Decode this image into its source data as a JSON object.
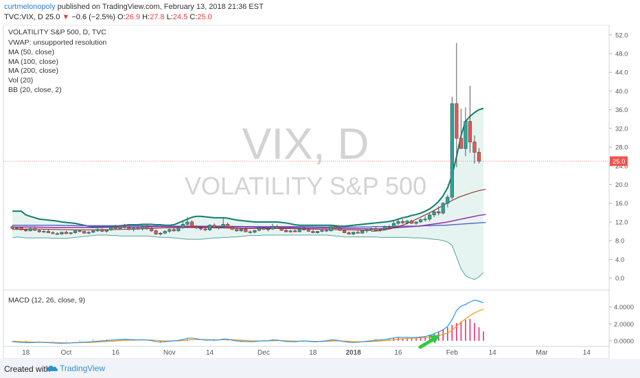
{
  "header": {
    "author": "curtmelonopoly",
    "published_text": "published on TradingView.com, February 13, 2018 21:36 EST",
    "symbol": "TVC:VIX, D",
    "last": "25.0",
    "change": "−0.6 (−2.5%)",
    "o_label": "O:",
    "o_value": "26.9",
    "h_label": "H:",
    "h_value": "27.8",
    "l_label": "L:",
    "l_value": "24.5",
    "c_label": "C:",
    "c_value": "25.0"
  },
  "footer": {
    "created_with": "Created with",
    "brand": "TradingView"
  },
  "colors": {
    "up": "#26a69a",
    "down": "#ef5350",
    "bb": "#0f7c6e",
    "bb_fill": "#e6f4f1",
    "ma50": "#8b1a1a",
    "ma100": "#9c27b0",
    "ma200": "#5c6bc0",
    "macd": "#2196f3",
    "signal": "#ff9800",
    "hist": "#e91e63",
    "current": "#ef5350"
  },
  "chart_data": [
    {
      "type": "candlestick",
      "title": "VOLATILITY S&P 500, D, TVC",
      "watermark_symbol": "VIX, D",
      "watermark_name": "VOLATILITY S&P 500",
      "legend": [
        "VWAP: unsupported resolution",
        "MA (50, close)",
        "MA (100, close)",
        "MA (200, close)",
        "Vol (20)",
        "BB (20, close, 2)"
      ],
      "y_ticks": [
        0.0,
        4.0,
        8.0,
        12.0,
        16.0,
        20.0,
        24.0,
        28.0,
        32.0,
        36.0,
        40.0,
        44.0,
        48.0,
        52.0
      ],
      "ylim": [
        -0.5,
        53.0
      ],
      "current_price": 25.0,
      "x_ticks": [
        {
          "label": "18",
          "x": 3
        },
        {
          "label": "Oct",
          "x": 12
        },
        {
          "label": "16",
          "x": 23
        },
        {
          "label": "Nov",
          "x": 35
        },
        {
          "label": "14",
          "x": 44
        },
        {
          "label": "Dec",
          "x": 56
        },
        {
          "label": "18",
          "x": 67
        },
        {
          "label": "2018",
          "x": 76
        },
        {
          "label": "16",
          "x": 86
        },
        {
          "label": "Feb",
          "x": 98
        },
        {
          "label": "14",
          "x": 107
        },
        {
          "label": "Mar",
          "x": 118
        },
        {
          "label": "14",
          "x": 128
        }
      ],
      "x_range": [
        -2,
        133
      ],
      "ohlc": [
        [
          11.0,
          11.3,
          10.4,
          10.6
        ],
        [
          10.6,
          11.0,
          10.3,
          10.8
        ],
        [
          10.8,
          11.0,
          10.2,
          10.3
        ],
        [
          10.3,
          10.6,
          9.9,
          10.1
        ],
        [
          10.1,
          10.8,
          10.0,
          10.6
        ],
        [
          10.6,
          10.9,
          10.1,
          10.2
        ],
        [
          10.2,
          10.4,
          9.7,
          9.9
        ],
        [
          9.9,
          10.3,
          9.6,
          10.0
        ],
        [
          10.0,
          10.4,
          9.6,
          9.7
        ],
        [
          9.7,
          10.0,
          9.4,
          9.5
        ],
        [
          9.5,
          9.8,
          9.2,
          9.4
        ],
        [
          9.4,
          9.9,
          9.3,
          9.8
        ],
        [
          9.8,
          10.1,
          9.4,
          9.5
        ],
        [
          9.5,
          9.8,
          9.3,
          9.7
        ],
        [
          9.7,
          10.2,
          9.5,
          10.1
        ],
        [
          10.1,
          10.4,
          9.8,
          10.0
        ],
        [
          10.0,
          10.1,
          9.5,
          9.6
        ],
        [
          9.6,
          10.0,
          9.4,
          9.8
        ],
        [
          9.8,
          10.2,
          9.6,
          10.1
        ],
        [
          10.1,
          10.6,
          9.9,
          10.4
        ],
        [
          10.4,
          10.6,
          9.8,
          10.0
        ],
        [
          10.0,
          10.4,
          9.7,
          10.3
        ],
        [
          10.3,
          11.2,
          10.1,
          10.9
        ],
        [
          10.9,
          11.4,
          10.4,
          10.6
        ],
        [
          10.6,
          11.2,
          10.3,
          11.1
        ],
        [
          11.1,
          11.6,
          10.6,
          10.8
        ],
        [
          10.8,
          11.1,
          10.2,
          10.4
        ],
        [
          10.4,
          10.8,
          10.0,
          10.7
        ],
        [
          10.7,
          11.1,
          10.3,
          10.5
        ],
        [
          10.5,
          11.2,
          10.2,
          11.0
        ],
        [
          11.0,
          11.4,
          10.3,
          10.6
        ],
        [
          10.6,
          10.9,
          9.9,
          10.1
        ],
        [
          10.1,
          10.4,
          9.3,
          9.4
        ],
        [
          9.4,
          9.8,
          9.1,
          9.6
        ],
        [
          9.6,
          10.2,
          9.4,
          10.0
        ],
        [
          10.0,
          10.6,
          9.7,
          10.4
        ],
        [
          10.4,
          10.9,
          9.9,
          10.1
        ],
        [
          10.1,
          11.0,
          9.9,
          10.8
        ],
        [
          10.8,
          12.2,
          10.5,
          11.5
        ],
        [
          11.5,
          13.1,
          11.0,
          12.0
        ],
        [
          12.0,
          12.4,
          10.8,
          11.0
        ],
        [
          11.0,
          11.3,
          10.5,
          10.7
        ],
        [
          10.7,
          11.0,
          10.2,
          10.5
        ],
        [
          10.5,
          10.9,
          10.0,
          10.3
        ],
        [
          10.3,
          11.5,
          10.1,
          11.3
        ],
        [
          11.3,
          11.7,
          10.6,
          10.8
        ],
        [
          10.8,
          11.2,
          10.4,
          11.0
        ],
        [
          11.0,
          12.8,
          10.8,
          11.5
        ],
        [
          11.5,
          11.9,
          10.8,
          10.9
        ],
        [
          10.9,
          11.2,
          10.3,
          10.4
        ],
        [
          10.4,
          10.8,
          9.9,
          10.1
        ],
        [
          10.1,
          10.6,
          9.9,
          10.5
        ],
        [
          10.5,
          10.8,
          9.8,
          9.9
        ],
        [
          9.9,
          10.2,
          9.5,
          9.8
        ],
        [
          9.8,
          10.3,
          9.6,
          10.2
        ],
        [
          10.2,
          10.9,
          10.0,
          10.7
        ],
        [
          10.7,
          11.0,
          10.3,
          10.4
        ],
        [
          10.4,
          10.7,
          10.0,
          10.5
        ],
        [
          10.5,
          11.6,
          10.3,
          11.0
        ],
        [
          11.0,
          11.4,
          10.5,
          10.6
        ],
        [
          10.6,
          10.9,
          10.1,
          10.2
        ],
        [
          10.2,
          10.5,
          9.8,
          9.9
        ],
        [
          9.9,
          10.3,
          9.7,
          10.1
        ],
        [
          10.1,
          10.4,
          9.8,
          9.9
        ],
        [
          9.9,
          10.6,
          9.8,
          10.5
        ],
        [
          10.5,
          10.9,
          10.2,
          10.3
        ],
        [
          10.3,
          10.6,
          9.9,
          10.0
        ],
        [
          10.0,
          10.3,
          9.6,
          9.7
        ],
        [
          9.7,
          10.1,
          9.5,
          10.0
        ],
        [
          10.0,
          10.4,
          9.8,
          10.2
        ],
        [
          10.2,
          10.5,
          9.9,
          10.1
        ],
        [
          10.1,
          11.1,
          10.0,
          11.0
        ],
        [
          11.0,
          11.3,
          10.5,
          10.6
        ],
        [
          10.6,
          10.8,
          10.1,
          10.2
        ],
        [
          10.2,
          10.4,
          9.6,
          9.7
        ],
        [
          9.7,
          10.0,
          9.3,
          9.4
        ],
        [
          9.4,
          9.9,
          9.2,
          9.8
        ],
        [
          9.8,
          10.2,
          9.5,
          9.6
        ],
        [
          9.6,
          10.3,
          9.5,
          10.1
        ],
        [
          10.1,
          10.5,
          9.7,
          10.3
        ],
        [
          10.3,
          10.9,
          10.1,
          10.6
        ],
        [
          10.6,
          10.9,
          10.0,
          10.2
        ],
        [
          10.2,
          10.6,
          9.9,
          10.4
        ],
        [
          10.4,
          11.2,
          10.2,
          11.0
        ],
        [
          11.0,
          11.3,
          10.6,
          10.9
        ],
        [
          10.9,
          12.1,
          10.7,
          11.7
        ],
        [
          11.7,
          12.6,
          11.3,
          12.1
        ],
        [
          12.1,
          12.6,
          11.6,
          11.8
        ],
        [
          11.8,
          12.4,
          11.5,
          12.2
        ],
        [
          12.2,
          12.5,
          11.6,
          11.7
        ],
        [
          11.7,
          12.1,
          11.4,
          12.0
        ],
        [
          12.0,
          12.7,
          11.8,
          12.5
        ],
        [
          12.5,
          13.2,
          12.1,
          12.6
        ],
        [
          12.6,
          13.9,
          12.2,
          13.5
        ],
        [
          13.5,
          14.6,
          13.0,
          14.2
        ],
        [
          14.2,
          15.3,
          13.4,
          13.9
        ],
        [
          13.9,
          16.2,
          13.6,
          16.0
        ],
        [
          16.0,
          17.8,
          15.1,
          17.3
        ],
        [
          17.3,
          38.8,
          16.8,
          37.3
        ],
        [
          37.3,
          50.3,
          23.7,
          29.9
        ],
        [
          29.9,
          36.2,
          27.7,
          27.7
        ],
        [
          27.7,
          36.5,
          26.1,
          33.5
        ],
        [
          33.5,
          41.1,
          26.8,
          29.1
        ],
        [
          29.1,
          30.5,
          24.5,
          26.9
        ],
        [
          26.9,
          27.8,
          24.5,
          25.0
        ]
      ],
      "bb_upper": [
        14.3,
        14.3,
        14.3,
        13.5,
        13.2,
        12.9,
        12.6,
        12.5,
        12.4,
        12.3,
        12.2,
        12.0,
        11.9,
        11.8,
        11.7,
        11.5,
        11.3,
        11.1,
        11.0,
        11.0,
        11.0,
        11.0,
        11.1,
        11.1,
        11.2,
        11.3,
        11.4,
        11.4,
        11.4,
        11.5,
        11.5,
        11.5,
        11.4,
        11.4,
        11.3,
        11.3,
        11.4,
        11.8,
        12.2,
        12.6,
        13.0,
        13.2,
        13.2,
        13.1,
        13.0,
        12.9,
        12.9,
        12.9,
        12.8,
        12.6,
        12.4,
        12.3,
        12.2,
        12.1,
        12.0,
        12.0,
        12.0,
        12.0,
        12.0,
        12.0,
        11.9,
        11.8,
        11.6,
        11.4,
        11.3,
        11.3,
        11.3,
        11.3,
        11.3,
        11.3,
        11.3,
        11.3,
        11.2,
        11.1,
        11.1,
        11.2,
        11.3,
        11.4,
        11.5,
        11.6,
        11.7,
        11.8,
        11.9,
        12.0,
        12.1,
        12.3,
        12.6,
        12.9,
        13.1,
        13.4,
        13.6,
        13.9,
        14.3,
        14.8,
        15.5,
        16.4,
        17.6,
        19.3,
        22.0,
        26.0,
        30.5,
        33.5,
        34.6,
        35.4,
        36.0,
        36.3
      ],
      "bb_lower": [
        8.6,
        8.8,
        8.7,
        8.6,
        8.6,
        8.6,
        8.6,
        8.6,
        8.6,
        8.5,
        8.5,
        8.5,
        8.5,
        8.6,
        8.7,
        8.8,
        8.9,
        9.0,
        9.1,
        9.2,
        9.2,
        9.2,
        9.1,
        9.1,
        9.0,
        9.0,
        9.0,
        9.0,
        9.0,
        9.0,
        9.0,
        8.9,
        8.8,
        8.7,
        8.7,
        8.7,
        8.6,
        8.5,
        8.4,
        8.3,
        8.3,
        8.3,
        8.3,
        8.4,
        8.5,
        8.6,
        8.6,
        8.7,
        8.7,
        8.8,
        8.8,
        8.9,
        9.0,
        9.1,
        9.1,
        9.1,
        9.2,
        9.2,
        9.2,
        9.2,
        9.2,
        9.2,
        9.2,
        9.2,
        9.2,
        9.2,
        9.2,
        9.2,
        9.2,
        9.2,
        9.2,
        9.1,
        9.0,
        8.9,
        8.8,
        8.8,
        8.8,
        8.8,
        8.8,
        8.8,
        8.8,
        8.8,
        8.7,
        8.7,
        8.7,
        8.7,
        8.7,
        8.7,
        8.7,
        8.6,
        8.6,
        8.6,
        8.5,
        8.4,
        8.3,
        8.2,
        8.0,
        7.7,
        7.0,
        4.5,
        2.0,
        0.5,
        0.0,
        -0.3,
        0.3,
        1.2
      ],
      "ma_start": 80,
      "ma50": [
        10.0,
        10.1,
        10.3,
        10.6,
        11.0,
        11.5,
        12.1,
        12.8,
        13.5,
        14.2,
        15.0,
        15.8,
        16.6,
        17.3,
        17.8,
        18.3,
        18.7,
        19.0
      ],
      "ma100": [
        10.5,
        10.5,
        10.6,
        10.7,
        10.8,
        10.9,
        11.0,
        11.1,
        11.3,
        11.5,
        11.7,
        11.9,
        12.2,
        12.5,
        12.8,
        13.1,
        13.4,
        13.6
      ],
      "ma200": [
        11.0,
        11.0,
        11.0,
        11.0,
        11.1,
        11.1,
        11.1,
        11.1,
        11.2,
        11.2,
        11.3,
        11.3,
        11.4,
        11.5,
        11.6,
        11.7,
        11.8,
        11.9
      ],
      "ma_early_50": [
        10.4,
        10.5,
        10.4,
        10.3,
        10.3,
        10.4,
        10.5,
        10.7,
        10.8,
        10.8,
        10.7,
        10.6,
        10.6,
        10.6,
        10.5,
        10.4,
        10.3,
        10.2
      ],
      "ma_early_100": [
        10.9,
        10.9,
        10.8,
        10.8,
        10.8,
        10.9,
        10.9,
        11.0,
        11.0,
        11.0,
        10.9,
        10.9,
        10.8,
        10.8,
        10.7,
        10.7,
        10.6,
        10.5
      ],
      "ma_early_200": [
        11.3,
        11.3,
        11.3,
        11.2,
        11.2,
        11.2,
        11.2,
        11.1,
        11.1,
        11.1,
        11.1,
        11.0,
        11.0,
        11.0,
        11.0,
        10.9,
        10.9,
        10.9
      ]
    },
    {
      "type": "macd",
      "title": "MACD (12, 26, close, 9)",
      "y_ticks": [
        0.0,
        2.0,
        4.0
      ],
      "y_tick_labels": [
        "0.0000",
        "2.0000",
        "4.0000"
      ],
      "ylim": [
        -0.5,
        5.2
      ],
      "macd": [
        -0.1,
        -0.15,
        -0.2,
        -0.22,
        -0.22,
        -0.2,
        -0.18,
        -0.2,
        -0.22,
        -0.25,
        -0.28,
        -0.3,
        -0.28,
        -0.26,
        -0.22,
        -0.18,
        -0.16,
        -0.14,
        -0.1,
        -0.05,
        0.0,
        0.02,
        0.08,
        0.1,
        0.15,
        0.18,
        0.15,
        0.12,
        0.1,
        0.12,
        0.1,
        0.02,
        -0.1,
        -0.15,
        -0.12,
        -0.05,
        0.0,
        0.05,
        0.15,
        0.3,
        0.32,
        0.25,
        0.15,
        0.08,
        0.1,
        0.08,
        0.1,
        0.2,
        0.18,
        0.08,
        -0.02,
        -0.05,
        -0.08,
        -0.12,
        -0.1,
        -0.02,
        0.0,
        0.0,
        0.1,
        0.08,
        0.0,
        -0.08,
        -0.1,
        -0.12,
        -0.05,
        -0.03,
        -0.05,
        -0.12,
        -0.12,
        -0.05,
        0.0,
        0.1,
        0.08,
        0.0,
        -0.1,
        -0.18,
        -0.2,
        -0.18,
        -0.12,
        -0.05,
        0.0,
        0.08,
        0.1,
        0.15,
        0.25,
        0.35,
        0.42,
        0.4,
        0.42,
        0.38,
        0.4,
        0.45,
        0.5,
        0.65,
        0.85,
        1.05,
        1.3,
        1.7,
        2.5,
        3.6,
        4.1,
        4.3,
        4.6,
        4.8,
        4.7,
        4.5
      ],
      "signal": [
        -0.05,
        -0.07,
        -0.1,
        -0.12,
        -0.14,
        -0.15,
        -0.16,
        -0.17,
        -0.18,
        -0.2,
        -0.21,
        -0.23,
        -0.24,
        -0.24,
        -0.24,
        -0.23,
        -0.21,
        -0.2,
        -0.18,
        -0.15,
        -0.12,
        -0.09,
        -0.05,
        -0.02,
        0.02,
        0.05,
        0.07,
        0.08,
        0.09,
        0.1,
        0.1,
        0.09,
        0.05,
        0.01,
        -0.01,
        -0.02,
        -0.01,
        0.0,
        0.03,
        0.08,
        0.13,
        0.15,
        0.15,
        0.14,
        0.13,
        0.12,
        0.11,
        0.13,
        0.14,
        0.13,
        0.1,
        0.07,
        0.04,
        0.01,
        -0.01,
        -0.02,
        -0.02,
        -0.01,
        0.01,
        0.02,
        0.02,
        0.0,
        -0.02,
        -0.04,
        -0.04,
        -0.04,
        -0.04,
        -0.06,
        -0.07,
        -0.07,
        -0.06,
        -0.03,
        -0.01,
        -0.01,
        -0.03,
        -0.06,
        -0.09,
        -0.11,
        -0.12,
        -0.11,
        -0.09,
        -0.05,
        -0.02,
        0.02,
        0.07,
        0.13,
        0.19,
        0.24,
        0.28,
        0.3,
        0.33,
        0.36,
        0.39,
        0.44,
        0.52,
        0.62,
        0.75,
        0.94,
        1.25,
        1.72,
        2.2,
        2.6,
        2.98,
        3.3,
        3.55,
        3.75
      ],
      "hist_start": 85,
      "hist": [
        0.3,
        0.35,
        0.3,
        0.3,
        0.25,
        0.3,
        0.4,
        0.55,
        0.7,
        0.85,
        1.05,
        1.3,
        1.6,
        1.9,
        2.1,
        2.3,
        2.5,
        2.6,
        2.1,
        1.6,
        1.1
      ]
    }
  ]
}
